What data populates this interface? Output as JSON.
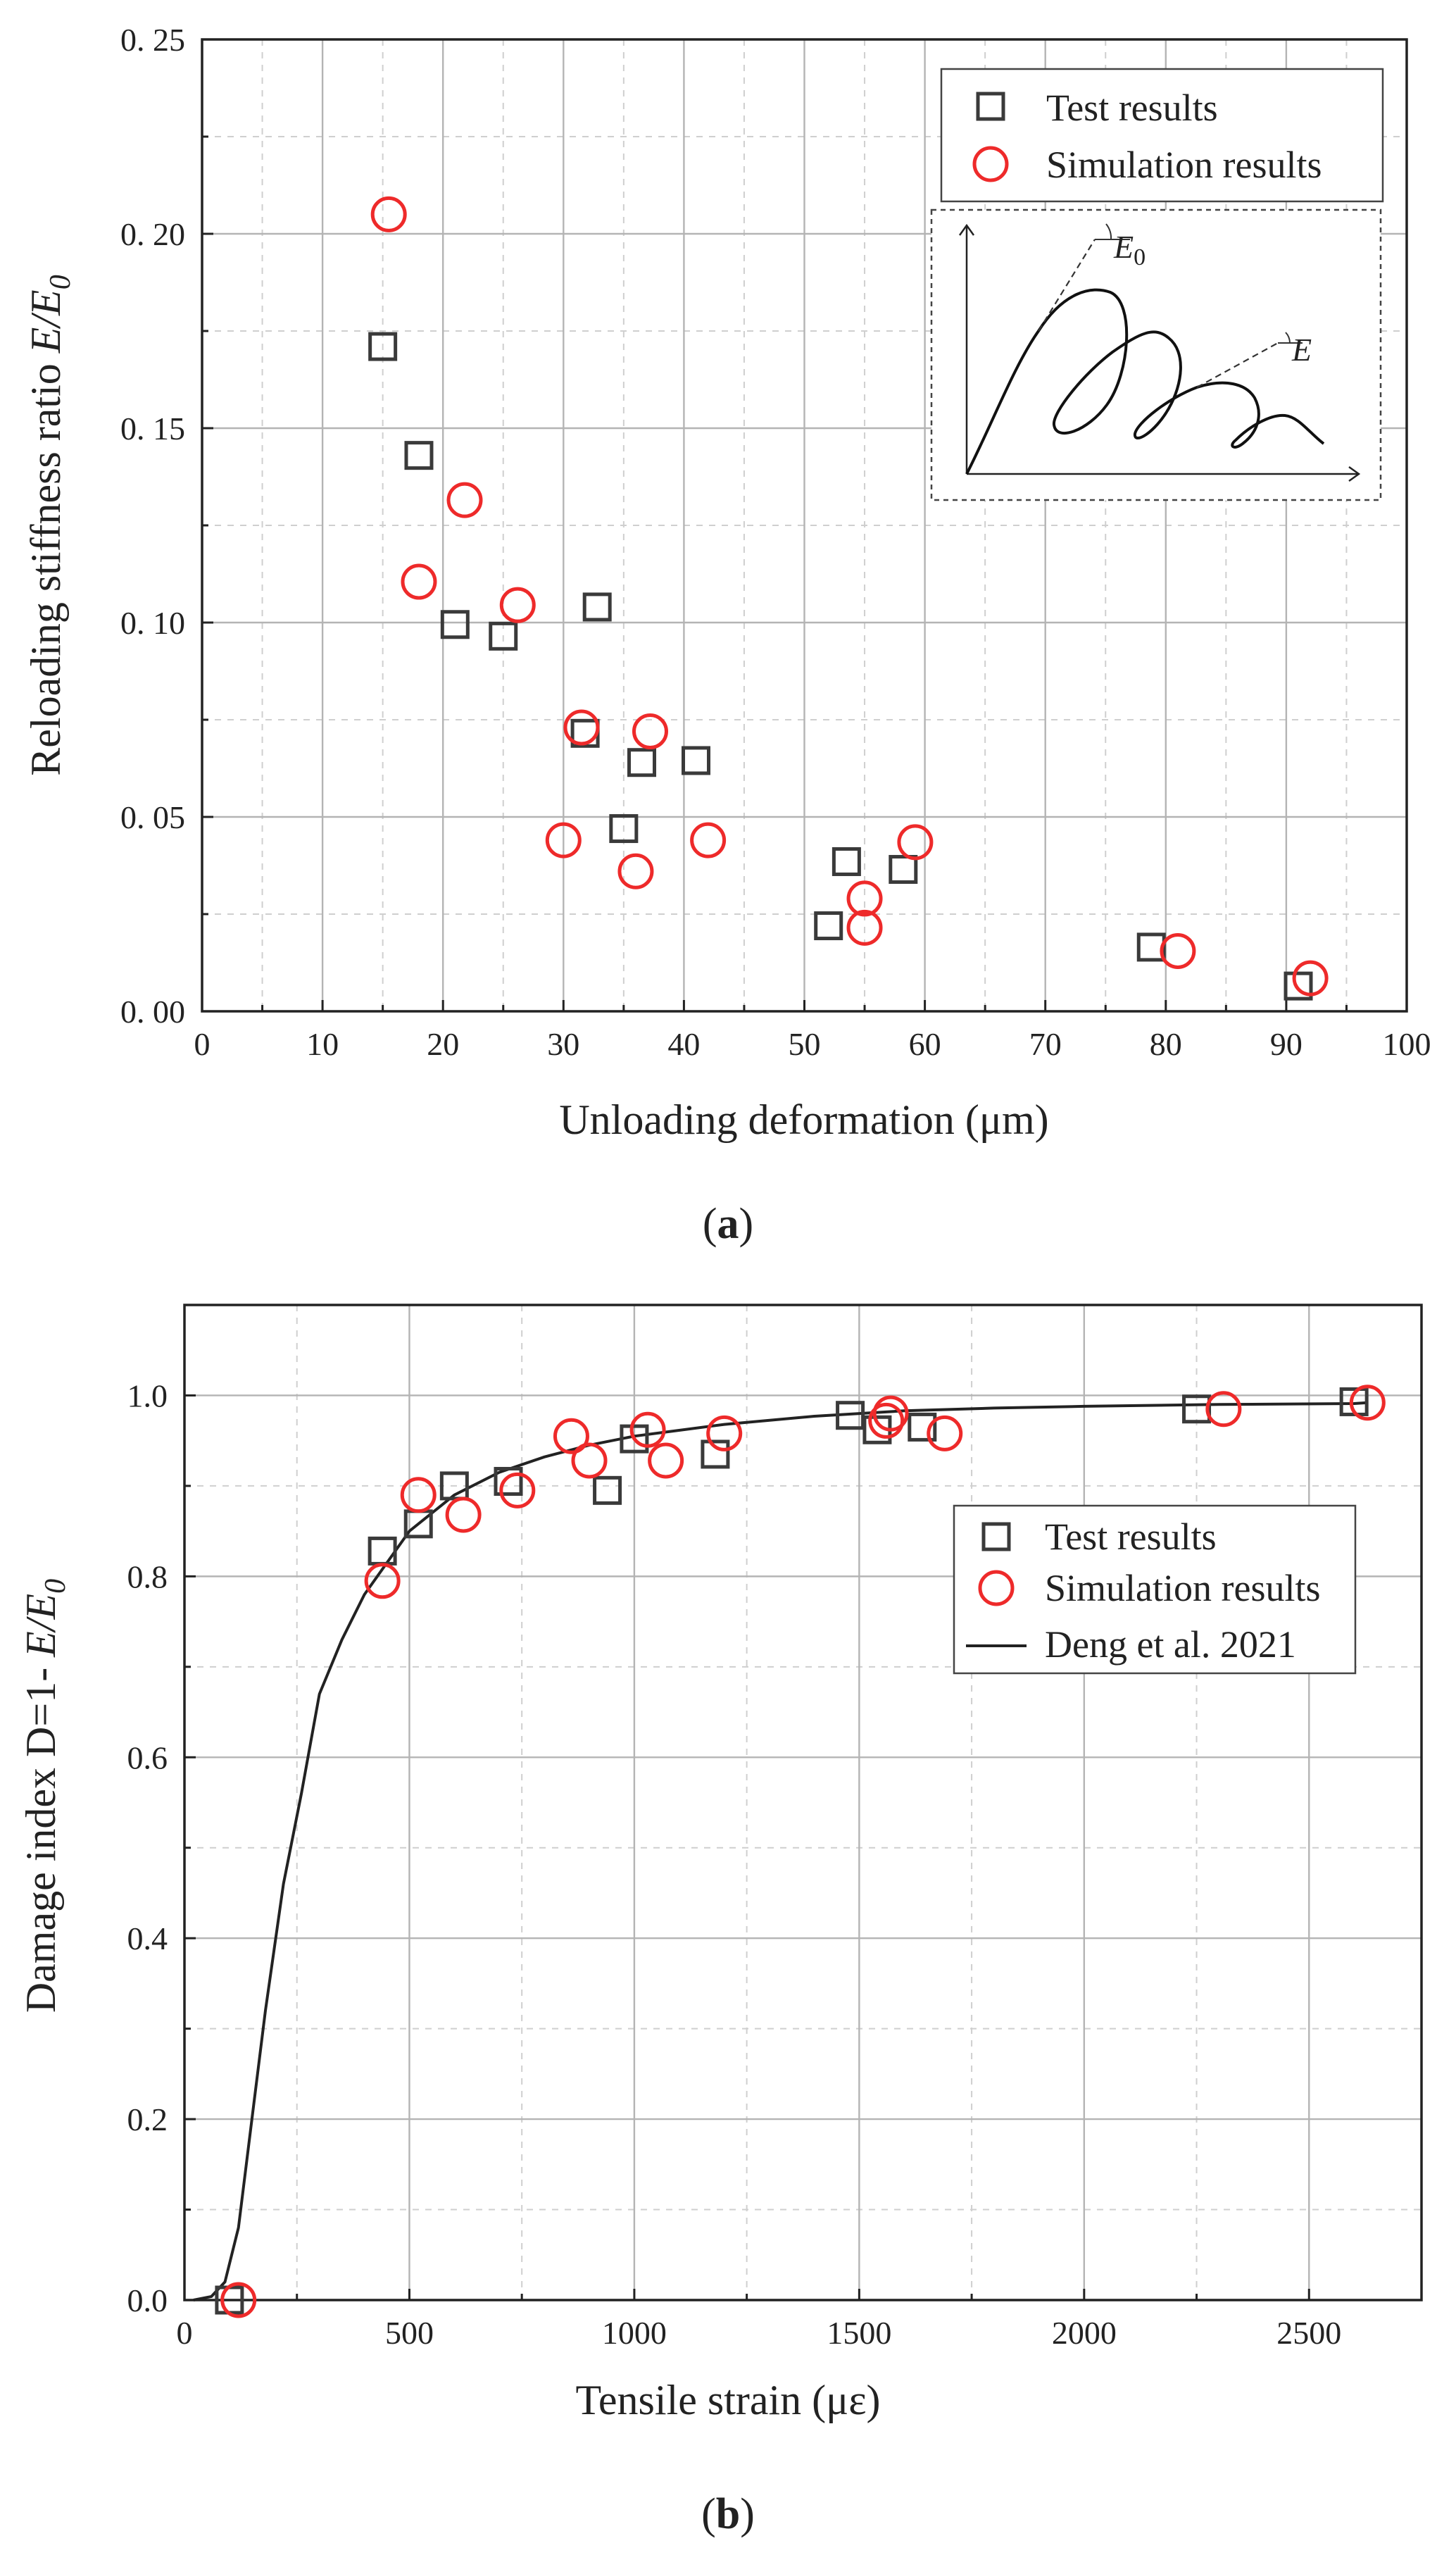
{
  "chart_data": [
    {
      "type": "scatter",
      "xlabel": "Unloading deformation (μm)",
      "ylabel": {
        "text": "Reloading stiffness ratio ",
        "sym": "E/E",
        "sub": "0"
      },
      "xlim": [
        0,
        100
      ],
      "ylim": [
        0,
        0.25
      ],
      "xticks": [
        0,
        10,
        20,
        30,
        40,
        50,
        60,
        70,
        80,
        90,
        100
      ],
      "yticks": [
        0.0,
        0.05,
        0.1,
        0.15,
        0.2,
        0.25
      ],
      "ytick_labels": [
        "0. 00",
        "0. 05",
        "0. 10",
        "0. 15",
        "0. 20",
        "0. 25"
      ],
      "grid": true,
      "legend_position": "top-right",
      "caption": {
        "open": "(",
        "letter": "a",
        "close": ")"
      },
      "inset": {
        "label_e0": "E",
        "label_e0_sub": "0",
        "label_e": "E"
      },
      "series": [
        {
          "name": "Test results",
          "marker": "square",
          "color": "#3a3a3a",
          "points": [
            [
              15.0,
              0.171
            ],
            [
              18.0,
              0.143
            ],
            [
              21.0,
              0.0995
            ],
            [
              25.0,
              0.0965
            ],
            [
              32.8,
              0.104
            ],
            [
              31.8,
              0.0715
            ],
            [
              36.5,
              0.064
            ],
            [
              35.0,
              0.047
            ],
            [
              41.0,
              0.0645
            ],
            [
              52.0,
              0.022
            ],
            [
              53.5,
              0.0385
            ],
            [
              58.2,
              0.0365
            ],
            [
              78.8,
              0.0165
            ],
            [
              91.0,
              0.0065
            ]
          ]
        },
        {
          "name": "Simulation results",
          "marker": "circle",
          "color": "#ee2a2a",
          "points": [
            [
              15.5,
              0.205
            ],
            [
              21.8,
              0.1315
            ],
            [
              18.0,
              0.1105
            ],
            [
              26.2,
              0.1045
            ],
            [
              31.5,
              0.073
            ],
            [
              37.2,
              0.072
            ],
            [
              30.0,
              0.044
            ],
            [
              36.0,
              0.036
            ],
            [
              42.0,
              0.044
            ],
            [
              55.0,
              0.029
            ],
            [
              55.0,
              0.0215
            ],
            [
              59.2,
              0.0435
            ],
            [
              81.0,
              0.0155
            ],
            [
              92.0,
              0.0085
            ]
          ]
        }
      ]
    },
    {
      "type": "scatter",
      "xlabel": "Tensile strain (με)",
      "ylabel": {
        "text": "Damage index D=1- ",
        "sym": "E/E",
        "sub": "0"
      },
      "xlim": [
        0,
        2750
      ],
      "ylim": [
        0,
        1.1
      ],
      "xticks": [
        0,
        500,
        1000,
        1500,
        2000,
        2500
      ],
      "yticks": [
        0.0,
        0.2,
        0.4,
        0.6,
        0.8,
        1.0
      ],
      "ytick_labels": [
        "0.0",
        "0.2",
        "0.4",
        "0.6",
        "0.8",
        "1.0"
      ],
      "grid": true,
      "legend_position": "right",
      "caption": {
        "open": "(",
        "letter": "b",
        "close": ")"
      },
      "series": [
        {
          "name": "Test results",
          "marker": "square",
          "color": "#3a3a3a",
          "points": [
            [
              100,
              0.0
            ],
            [
              440,
              0.828
            ],
            [
              520,
              0.858
            ],
            [
              600,
              0.9
            ],
            [
              720,
              0.905
            ],
            [
              940,
              0.895
            ],
            [
              1000,
              0.952
            ],
            [
              1180,
              0.935
            ],
            [
              1480,
              0.978
            ],
            [
              1540,
              0.962
            ],
            [
              1640,
              0.965
            ],
            [
              2250,
              0.985
            ],
            [
              2600,
              0.993
            ]
          ]
        },
        {
          "name": "Simulation results",
          "marker": "circle",
          "color": "#ee2a2a",
          "points": [
            [
              120,
              0.0
            ],
            [
              440,
              0.795
            ],
            [
              520,
              0.89
            ],
            [
              620,
              0.868
            ],
            [
              740,
              0.895
            ],
            [
              860,
              0.955
            ],
            [
              900,
              0.928
            ],
            [
              1030,
              0.962
            ],
            [
              1070,
              0.928
            ],
            [
              1200,
              0.958
            ],
            [
              1560,
              0.972
            ],
            [
              1570,
              0.98
            ],
            [
              1690,
              0.958
            ],
            [
              2310,
              0.985
            ],
            [
              2630,
              0.992
            ]
          ]
        },
        {
          "name": "Deng et al. 2021",
          "marker": "line",
          "color": "#222222",
          "points": [
            [
              20,
              0.0
            ],
            [
              60,
              0.004
            ],
            [
              90,
              0.02
            ],
            [
              120,
              0.08
            ],
            [
              150,
              0.2
            ],
            [
              180,
              0.32
            ],
            [
              220,
              0.46
            ],
            [
              260,
              0.56
            ],
            [
              300,
              0.67
            ],
            [
              350,
              0.73
            ],
            [
              400,
              0.78
            ],
            [
              500,
              0.85
            ],
            [
              600,
              0.89
            ],
            [
              700,
              0.915
            ],
            [
              800,
              0.932
            ],
            [
              900,
              0.945
            ],
            [
              1000,
              0.955
            ],
            [
              1200,
              0.968
            ],
            [
              1400,
              0.977
            ],
            [
              1600,
              0.983
            ],
            [
              1800,
              0.986
            ],
            [
              2000,
              0.988
            ],
            [
              2300,
              0.99
            ],
            [
              2600,
              0.991
            ],
            [
              2630,
              0.992
            ]
          ]
        }
      ]
    }
  ]
}
